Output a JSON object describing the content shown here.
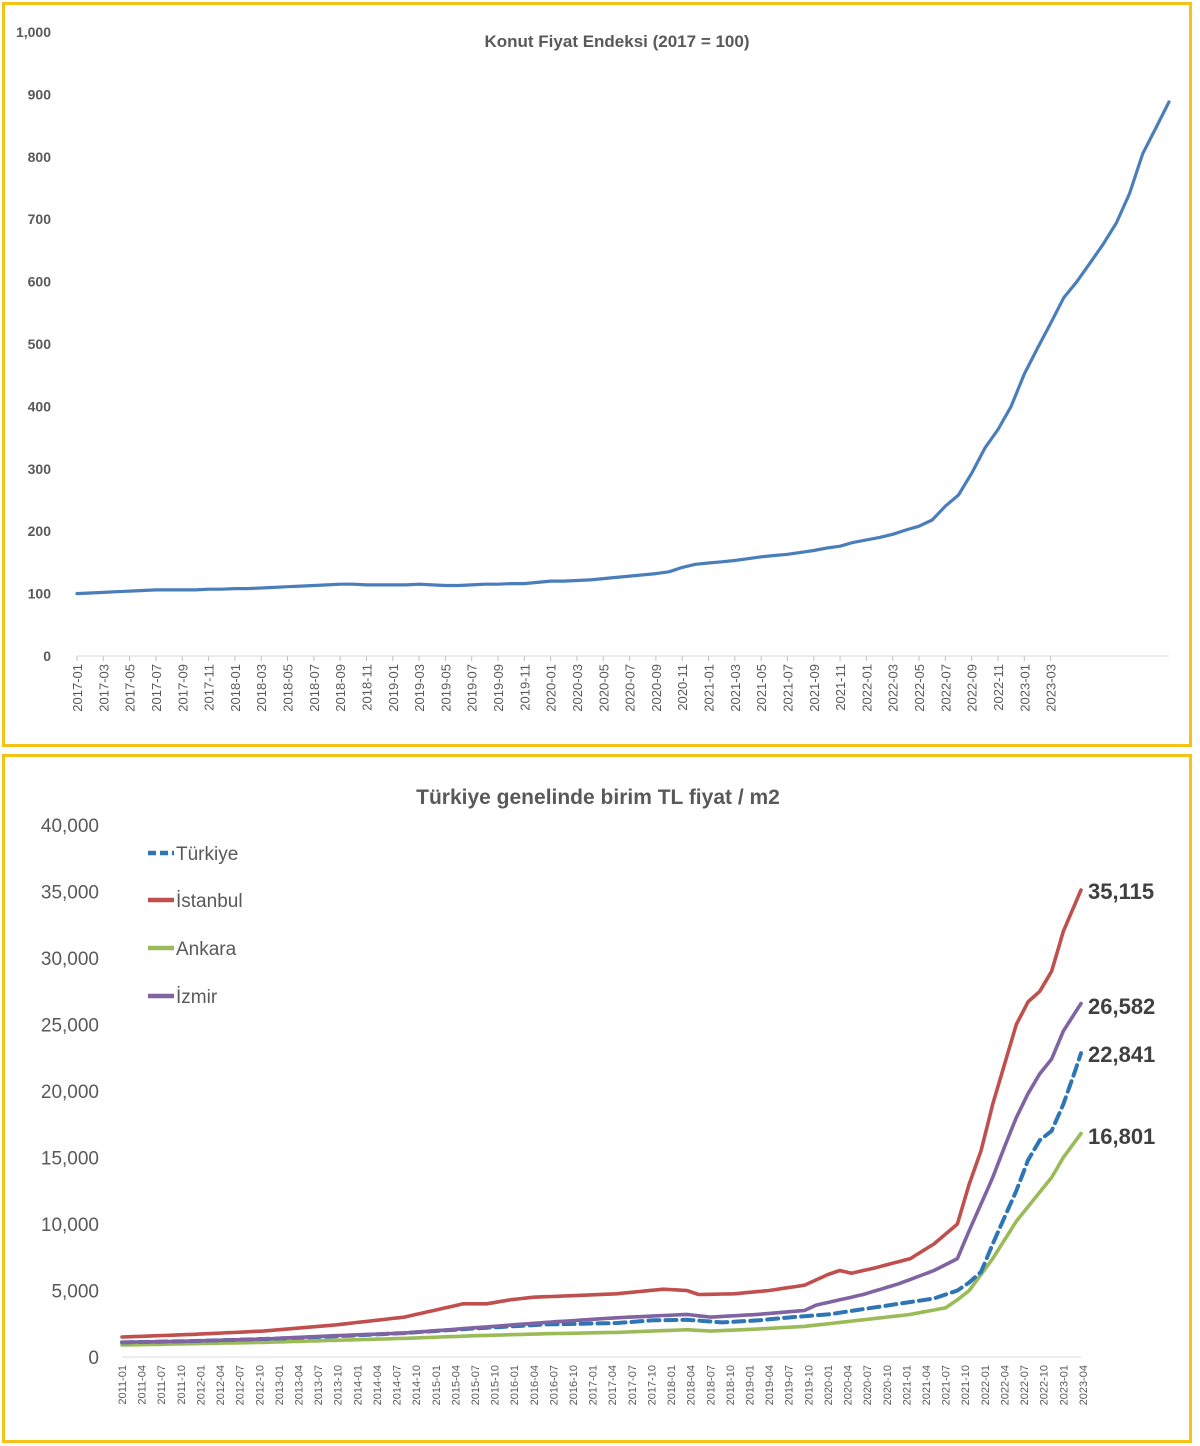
{
  "chart_data": [
    {
      "type": "line",
      "title": "Konut Fiyat Endeksi (2017 = 100)",
      "xlabel": "",
      "ylabel": "",
      "ylim": [
        0,
        1000
      ],
      "yticks": [
        0,
        100,
        200,
        300,
        400,
        500,
        600,
        700,
        800,
        900,
        1000
      ],
      "ytick_labels": [
        "0",
        "100",
        "200",
        "300",
        "400",
        "500",
        "600",
        "700",
        "800",
        "900",
        "1,000"
      ],
      "xtick_labels": [
        "2017-01",
        "2017-03",
        "2017-05",
        "2017-07",
        "2017-09",
        "2017-11",
        "2018-01",
        "2018-03",
        "2018-05",
        "2018-07",
        "2018-09",
        "2018-11",
        "2019-01",
        "2019-03",
        "2019-05",
        "2019-07",
        "2019-09",
        "2019-11",
        "2020-01",
        "2020-03",
        "2020-05",
        "2020-07",
        "2020-09",
        "2020-11",
        "2021-01",
        "2021-03",
        "2021-05",
        "2021-07",
        "2021-09",
        "2021-11",
        "2022-01",
        "2022-03",
        "2022-05",
        "2022-07",
        "2022-09",
        "2022-11",
        "2023-01",
        "2023-03"
      ],
      "grid": false,
      "legend": "none",
      "series": [
        {
          "color": "#4A7EBB",
          "x_start": "2017-01",
          "values": [
            100,
            101,
            102,
            103,
            104,
            105,
            106,
            106,
            106,
            106,
            107,
            107,
            108,
            108,
            109,
            110,
            111,
            112,
            113,
            114,
            115,
            115,
            114,
            114,
            114,
            114,
            115,
            114,
            113,
            113,
            114,
            115,
            115,
            116,
            116,
            118,
            120,
            120,
            121,
            122,
            124,
            126,
            128,
            130,
            132,
            135,
            142,
            147,
            149,
            151,
            153,
            156,
            159,
            161,
            163,
            166,
            169,
            173,
            176,
            182,
            186,
            190,
            195,
            202,
            208,
            218,
            240,
            258,
            293,
            333,
            363,
            400,
            452,
            493,
            533,
            574,
            600,
            630,
            660,
            694,
            741,
            805,
            846,
            888
          ]
        }
      ]
    },
    {
      "type": "line",
      "title": "Türkiye genelinde birim TL fiyat / m2",
      "xlabel": "",
      "ylabel": "",
      "ylim": [
        0,
        40000
      ],
      "yticks": [
        0,
        5000,
        10000,
        15000,
        20000,
        25000,
        30000,
        35000,
        40000
      ],
      "ytick_labels": [
        "0",
        "5,000",
        "10,000",
        "15,000",
        "20,000",
        "25,000",
        "30,000",
        "35,000",
        "40,000"
      ],
      "xtick_labels": [
        "2011-01",
        "2011-04",
        "2011-07",
        "2011-10",
        "2012-01",
        "2012-04",
        "2012-07",
        "2012-10",
        "2013-01",
        "2013-04",
        "2013-07",
        "2013-10",
        "2014-01",
        "2014-04",
        "2014-07",
        "2014-10",
        "2015-01",
        "2015-04",
        "2015-07",
        "2015-10",
        "2016-01",
        "2016-04",
        "2016-07",
        "2016-10",
        "2017-01",
        "2017-04",
        "2017-07",
        "2017-10",
        "2018-01",
        "2018-04",
        "2018-07",
        "2018-10",
        "2019-01",
        "2019-04",
        "2019-07",
        "2019-10",
        "2020-01",
        "2020-04",
        "2020-07",
        "2020-10",
        "2021-01",
        "2021-04",
        "2021-07",
        "2021-10",
        "2022-01",
        "2022-04",
        "2022-07",
        "2022-10",
        "2023-01",
        "2023-04"
      ],
      "grid": false,
      "legend": "top-left",
      "x_start": "2011-01",
      "end_labels": [
        "35,115",
        "26,582",
        "22,841",
        "16,801"
      ],
      "series": [
        {
          "name": "Türkiye",
          "color": "#2E75B6",
          "dashed": true,
          "knots": [
            [
              0,
              1100
            ],
            [
              12,
              1200
            ],
            [
              24,
              1350
            ],
            [
              36,
              1550
            ],
            [
              48,
              1800
            ],
            [
              60,
              2150
            ],
            [
              72,
              2450
            ],
            [
              84,
              2550
            ],
            [
              90,
              2750
            ],
            [
              96,
              2800
            ],
            [
              102,
              2600
            ],
            [
              108,
              2750
            ],
            [
              114,
              3000
            ],
            [
              120,
              3200
            ],
            [
              126,
              3600
            ],
            [
              132,
              4000
            ],
            [
              138,
              4400
            ],
            [
              142,
              5000
            ],
            [
              144,
              5600
            ],
            [
              146,
              6400
            ],
            [
              148,
              8500
            ],
            [
              150,
              10500
            ],
            [
              152,
              12500
            ],
            [
              154,
              14800
            ],
            [
              156,
              16300
            ],
            [
              158,
              17000
            ],
            [
              160,
              19000
            ],
            [
              162,
              21500
            ],
            [
              163,
              22841
            ]
          ],
          "last": 22841
        },
        {
          "name": "İstanbul",
          "color": "#C0504D",
          "dashed": false,
          "knots": [
            [
              0,
              1500
            ],
            [
              12,
              1700
            ],
            [
              24,
              1950
            ],
            [
              36,
              2400
            ],
            [
              48,
              3000
            ],
            [
              54,
              3600
            ],
            [
              58,
              4000
            ],
            [
              62,
              4000
            ],
            [
              66,
              4300
            ],
            [
              70,
              4500
            ],
            [
              76,
              4600
            ],
            [
              84,
              4750
            ],
            [
              92,
              5100
            ],
            [
              96,
              5000
            ],
            [
              98,
              4700
            ],
            [
              104,
              4750
            ],
            [
              110,
              5000
            ],
            [
              116,
              5400
            ],
            [
              120,
              6200
            ],
            [
              122,
              6500
            ],
            [
              124,
              6300
            ],
            [
              128,
              6700
            ],
            [
              134,
              7400
            ],
            [
              138,
              8500
            ],
            [
              142,
              10000
            ],
            [
              144,
              13000
            ],
            [
              146,
              15500
            ],
            [
              148,
              19000
            ],
            [
              150,
              22000
            ],
            [
              152,
              25000
            ],
            [
              154,
              26700
            ],
            [
              156,
              27500
            ],
            [
              158,
              29000
            ],
            [
              160,
              32000
            ],
            [
              163,
              35115
            ]
          ],
          "last": 35115
        },
        {
          "name": "Ankara",
          "color": "#9BBB59",
          "dashed": false,
          "knots": [
            [
              0,
              900
            ],
            [
              12,
              1000
            ],
            [
              24,
              1100
            ],
            [
              36,
              1250
            ],
            [
              48,
              1400
            ],
            [
              60,
              1600
            ],
            [
              72,
              1750
            ],
            [
              84,
              1850
            ],
            [
              96,
              2050
            ],
            [
              100,
              1950
            ],
            [
              108,
              2100
            ],
            [
              116,
              2300
            ],
            [
              122,
              2600
            ],
            [
              128,
              2900
            ],
            [
              134,
              3200
            ],
            [
              140,
              3700
            ],
            [
              142,
              4300
            ],
            [
              144,
              5000
            ],
            [
              146,
              6200
            ],
            [
              148,
              7400
            ],
            [
              150,
              8800
            ],
            [
              152,
              10200
            ],
            [
              154,
              11300
            ],
            [
              156,
              12400
            ],
            [
              158,
              13500
            ],
            [
              160,
              15000
            ],
            [
              163,
              16801
            ]
          ],
          "last": 16801
        },
        {
          "name": "İzmir",
          "color": "#8064A2",
          "dashed": false,
          "knots": [
            [
              0,
              1100
            ],
            [
              12,
              1200
            ],
            [
              24,
              1350
            ],
            [
              36,
              1600
            ],
            [
              48,
              1800
            ],
            [
              60,
              2200
            ],
            [
              72,
              2600
            ],
            [
              84,
              2950
            ],
            [
              96,
              3200
            ],
            [
              100,
              3000
            ],
            [
              108,
              3200
            ],
            [
              116,
              3500
            ],
            [
              118,
              3900
            ],
            [
              122,
              4300
            ],
            [
              126,
              4700
            ],
            [
              132,
              5500
            ],
            [
              138,
              6500
            ],
            [
              142,
              7400
            ],
            [
              144,
              9500
            ],
            [
              146,
              11500
            ],
            [
              148,
              13500
            ],
            [
              150,
              15800
            ],
            [
              152,
              18000
            ],
            [
              154,
              19800
            ],
            [
              156,
              21300
            ],
            [
              158,
              22400
            ],
            [
              160,
              24500
            ],
            [
              163,
              26582
            ]
          ],
          "last": 26582
        }
      ]
    }
  ]
}
